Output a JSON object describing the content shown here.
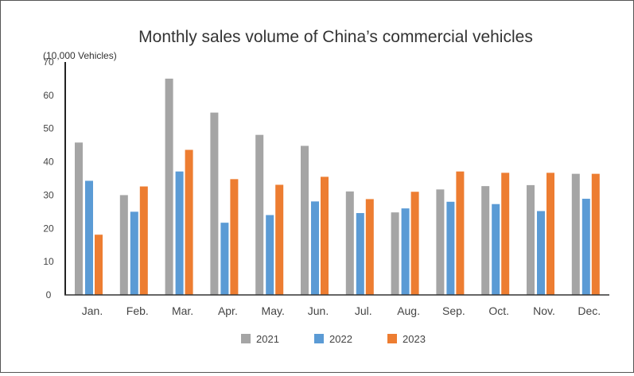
{
  "chart_data": {
    "type": "bar",
    "title": "Monthly sales volume of China’s commercial vehicles",
    "ylabel": "(10,000 Vehicles)",
    "xlabel": "",
    "ylim": [
      0,
      70
    ],
    "yticks": [
      0,
      10,
      20,
      30,
      40,
      50,
      60,
      70
    ],
    "grid": false,
    "legend_position": "bottom",
    "categories": [
      "Jan.",
      "Feb.",
      "Mar.",
      "Apr.",
      "May.",
      "Jun.",
      "Jul.",
      "Aug.",
      "Sep.",
      "Oct.",
      "Nov.",
      "Dec."
    ],
    "series": [
      {
        "name": "2021",
        "color": "#a5a5a5",
        "values": [
          45.8,
          30.0,
          65.0,
          54.8,
          48.1,
          44.8,
          31.1,
          24.8,
          31.7,
          32.7,
          33.0,
          36.4
        ]
      },
      {
        "name": "2022",
        "color": "#5b9bd5",
        "values": [
          34.3,
          25.0,
          37.1,
          21.7,
          24.0,
          28.1,
          24.6,
          26.0,
          28.0,
          27.3,
          25.2,
          28.9
        ]
      },
      {
        "name": "2023",
        "color": "#ed7d31",
        "values": [
          18.1,
          32.6,
          43.6,
          34.8,
          33.1,
          35.5,
          28.8,
          31.0,
          37.1,
          36.7,
          36.7,
          36.4
        ]
      }
    ]
  }
}
